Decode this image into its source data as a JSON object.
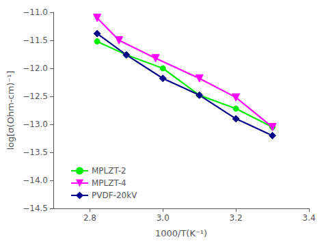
{
  "chart_data": {
    "type": "line",
    "xlabel": "1000/T(K⁻¹)",
    "ylabel": "log[σ(Ohm-cm)⁻¹]",
    "series": [
      {
        "name": "MPLZT-2",
        "color": "#00ee00",
        "marker": "circle",
        "x": [
          2.82,
          2.9,
          3.0,
          3.1,
          3.2,
          3.3
        ],
        "values": [
          -11.52,
          -11.76,
          -12.0,
          -12.48,
          -12.72,
          -13.05
        ]
      },
      {
        "name": "MPLZT-4",
        "color": "#ff00ff",
        "marker": "triangle_down",
        "x": [
          2.82,
          2.88,
          2.98,
          3.1,
          3.2,
          3.3
        ],
        "values": [
          -11.1,
          -11.5,
          -11.82,
          -12.18,
          -12.52,
          -13.05
        ]
      },
      {
        "name": "PVDF-20kV",
        "color": "#00008B",
        "marker": "diamond",
        "x": [
          2.82,
          2.9,
          3.0,
          3.1,
          3.2,
          3.3
        ],
        "values": [
          -11.38,
          -11.76,
          -12.18,
          -12.48,
          -12.9,
          -13.2
        ]
      }
    ],
    "xlim": [
      2.7,
      3.4
    ],
    "ylim": [
      -14.5,
      -11.0
    ],
    "xticks": [
      2.8,
      {
        "value": 3.0,
        "label": "3.0"
      },
      3.2,
      3.4
    ],
    "yticks": [
      {
        "value": -11.0,
        "label": "−11.0"
      },
      {
        "value": -11.5,
        "label": "−11.5"
      },
      {
        "value": -12.0,
        "label": "−12.0"
      },
      {
        "value": -12.5,
        "label": "−12.5"
      },
      {
        "value": -13.0,
        "label": "−13.0"
      },
      {
        "value": -13.5,
        "label": "−13.5"
      },
      {
        "value": -14.0,
        "label": "−14.0"
      },
      {
        "value": -14.5,
        "label": "−14.5"
      }
    ],
    "grid": false,
    "legend": "lower left"
  }
}
